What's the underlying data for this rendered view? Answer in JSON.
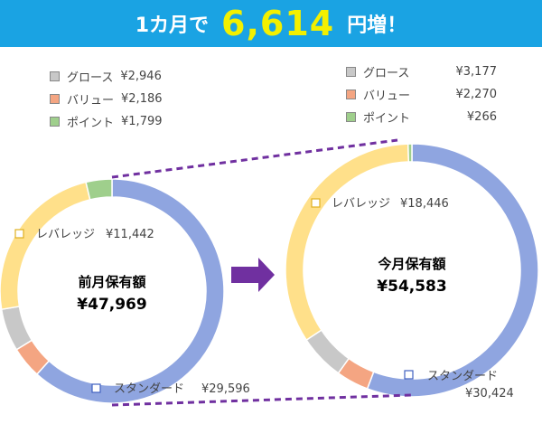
{
  "header": {
    "prefix": "1カ月で",
    "amount": "6,614",
    "suffix": "円増！"
  },
  "colors": {
    "banner": "#1aa3e3",
    "amount_text": "#f3f000",
    "arrow": "#7030a0",
    "connector": "#7030a0",
    "グロース": "#c8c8c8",
    "バリュー": "#f4a582",
    "ポイント": "#9fcf8c",
    "レバレッジ": "#ffe08a",
    "スタンダード": "#8fa5e0"
  },
  "chart_data": [
    {
      "type": "pie",
      "title": "前月保有額",
      "total_label": "¥47,969",
      "slices": [
        {
          "name": "スタンダード",
          "value": 29596,
          "label": "¥29,596"
        },
        {
          "name": "バリュー",
          "value": 2186,
          "label": "¥2,186"
        },
        {
          "name": "グロース",
          "value": 2946,
          "label": "¥2,946"
        },
        {
          "name": "レバレッジ",
          "value": 11442,
          "label": "¥11,442"
        },
        {
          "name": "ポイント",
          "value": 1799,
          "label": "¥1,799"
        }
      ]
    },
    {
      "type": "pie",
      "title": "今月保有額",
      "total_label": "¥54,583",
      "slices": [
        {
          "name": "スタンダード",
          "value": 30424,
          "label": "¥30,424"
        },
        {
          "name": "バリュー",
          "value": 2270,
          "label": "¥2,270"
        },
        {
          "name": "グロース",
          "value": 3177,
          "label": "¥3,177"
        },
        {
          "name": "レバレッジ",
          "value": 18446,
          "label": "¥18,446"
        },
        {
          "name": "ポイント",
          "value": 266,
          "label": "¥266"
        }
      ]
    }
  ]
}
